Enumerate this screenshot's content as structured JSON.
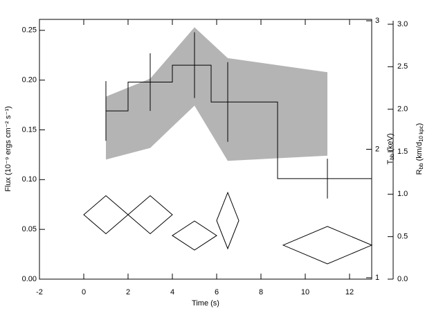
{
  "chart_data": {
    "type": "line",
    "xlabel": "Time (s)",
    "ylabel": "Flux (10⁻⁹ ergs cm⁻² s⁻¹)",
    "y2label": {
      "main": "T",
      "sub": "bb",
      "rest": " (keV)"
    },
    "y3label": {
      "main": "R",
      "sub": "bb",
      "rest": " (km/d",
      "sub2": "10 kpc",
      "end": ")"
    },
    "xlim": [
      -2,
      13
    ],
    "xticks": [
      -2,
      0,
      2,
      4,
      6,
      8,
      10,
      12
    ],
    "ylim": [
      0,
      0.261
    ],
    "yticks": [
      {
        "value": 0,
        "label": "0.00"
      },
      {
        "value": 0.05,
        "label": "0.05"
      },
      {
        "value": 0.1,
        "label": "0.10"
      },
      {
        "value": 0.15,
        "label": "0.15"
      },
      {
        "value": 0.2,
        "label": "0.20"
      },
      {
        "value": 0.25,
        "label": "0.25"
      }
    ],
    "y2lim": [
      0.989,
      3.011
    ],
    "y2ticks": [
      1,
      2,
      3
    ],
    "y3lim": [
      0,
      3.057
    ],
    "y3ticks": [
      {
        "value": 0,
        "label": "0.0"
      },
      {
        "value": 0.5,
        "label": "0.5"
      },
      {
        "value": 1,
        "label": "1.0"
      },
      {
        "value": 1.5,
        "label": "1.5"
      },
      {
        "value": 2,
        "label": "2.0"
      },
      {
        "value": 2.5,
        "label": "2.5"
      },
      {
        "value": 3,
        "label": "3.0"
      }
    ],
    "series": [
      {
        "style": "band",
        "axis": "y2",
        "color": "#b4b4b4",
        "x": [
          1,
          3,
          5,
          6.5,
          11
        ],
        "high": [
          2.41,
          2.55,
          2.95,
          2.71,
          2.6
        ],
        "low": [
          1.92,
          2.01,
          2.34,
          1.91,
          1.95
        ]
      },
      {
        "style": "step",
        "axis": "y",
        "color": "#000000",
        "x": [
          1,
          3,
          5,
          6.5,
          11
        ],
        "values": [
          0.169,
          0.198,
          0.215,
          0.178,
          0.101
        ],
        "yerr": [
          0.03,
          0.029,
          0.033,
          0.04,
          0.02
        ]
      },
      {
        "style": "diamond",
        "axis": "y3",
        "color": "#000000",
        "x": [
          1,
          3,
          5,
          6.5,
          11
        ],
        "xerr": [
          1,
          1,
          1,
          0.5,
          2
        ],
        "values": [
          0.758,
          0.758,
          0.513,
          0.689,
          0.4
        ],
        "yerr": [
          0.224,
          0.224,
          0.171,
          0.33,
          0.22
        ]
      }
    ]
  }
}
